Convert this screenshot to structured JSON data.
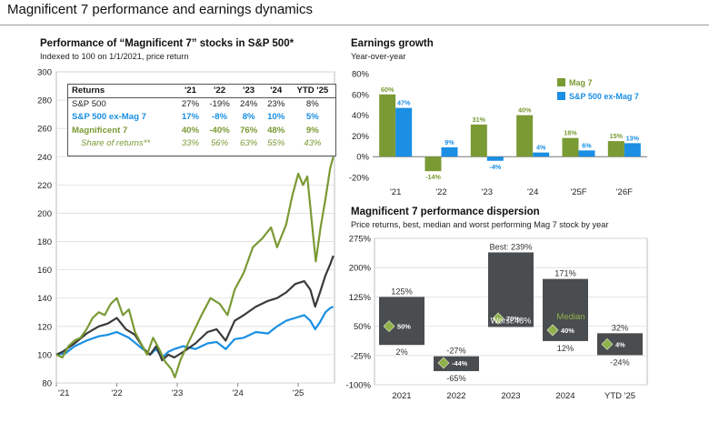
{
  "page": {
    "title": "Magnificent 7 performance and earnings dynamics"
  },
  "colors": {
    "mag7": "#7a9a34",
    "sp500": "#3a3a3a",
    "ex_mag7": "#1a8fe3",
    "box": "#4a4d4f",
    "diamond": "#8fb14a",
    "grid": "#dddddd"
  },
  "performance": {
    "title": "Performance of “Magnificent 7” stocks in S&P 500*",
    "subtitle": "Indexed to 100 on 1/1/2021, price return",
    "table": {
      "headers": [
        "Returns",
        "'21",
        "'22",
        "'23",
        "'24",
        "YTD '25"
      ],
      "rows": [
        {
          "label": "S&P 500",
          "values": [
            "27%",
            "-19%",
            "24%",
            "23%",
            "8%"
          ],
          "color": "#222222",
          "style": "normal"
        },
        {
          "label": "S&P 500 ex-Mag 7",
          "values": [
            "17%",
            "-8%",
            "8%",
            "10%",
            "5%"
          ],
          "color": "#1a8fe3",
          "style": "bold"
        },
        {
          "label": "Magnificent 7",
          "values": [
            "40%",
            "-40%",
            "76%",
            "48%",
            "9%"
          ],
          "color": "#7a9a34",
          "style": "bold"
        },
        {
          "label": "Share of returns**",
          "values": [
            "33%",
            "56%",
            "63%",
            "55%",
            "43%"
          ],
          "color": "#7a9a34",
          "style": "italic"
        }
      ]
    },
    "chart_data": {
      "type": "line",
      "x_ticks": [
        "'21",
        "'22",
        "'23",
        "'24",
        "'25"
      ],
      "ylim": [
        80,
        300
      ],
      "y_ticks": [
        80,
        100,
        120,
        140,
        160,
        180,
        200,
        220,
        240,
        260,
        280,
        300
      ],
      "series": [
        {
          "key": "mag7",
          "color": "#7a9a34",
          "points": [
            [
              2021.0,
              100
            ],
            [
              2021.1,
              98
            ],
            [
              2021.2,
              106
            ],
            [
              2021.3,
              110
            ],
            [
              2021.4,
              112
            ],
            [
              2021.5,
              118
            ],
            [
              2021.6,
              126
            ],
            [
              2021.7,
              130
            ],
            [
              2021.8,
              128
            ],
            [
              2021.9,
              136
            ],
            [
              2022.0,
              140
            ],
            [
              2022.1,
              128
            ],
            [
              2022.2,
              132
            ],
            [
              2022.3,
              116
            ],
            [
              2022.4,
              108
            ],
            [
              2022.5,
              100
            ],
            [
              2022.6,
              112
            ],
            [
              2022.7,
              104
            ],
            [
              2022.8,
              95
            ],
            [
              2022.9,
              90
            ],
            [
              2022.96,
              84
            ],
            [
              2023.05,
              96
            ],
            [
              2023.2,
              110
            ],
            [
              2023.4,
              128
            ],
            [
              2023.55,
              140
            ],
            [
              2023.7,
              136
            ],
            [
              2023.83,
              128
            ],
            [
              2023.95,
              146
            ],
            [
              2024.1,
              158
            ],
            [
              2024.25,
              176
            ],
            [
              2024.4,
              182
            ],
            [
              2024.55,
              190
            ],
            [
              2024.65,
              176
            ],
            [
              2024.8,
              192
            ],
            [
              2024.9,
              212
            ],
            [
              2025.0,
              228
            ],
            [
              2025.08,
              220
            ],
            [
              2025.15,
              226
            ],
            [
              2025.22,
              196
            ],
            [
              2025.29,
              166
            ],
            [
              2025.37,
              190
            ],
            [
              2025.45,
              210
            ],
            [
              2025.53,
              232
            ],
            [
              2025.58,
              240
            ]
          ]
        },
        {
          "key": "sp500",
          "color": "#3a3a3a",
          "points": [
            [
              2021.0,
              100
            ],
            [
              2021.1,
              102
            ],
            [
              2021.3,
              108
            ],
            [
              2021.5,
              115
            ],
            [
              2021.7,
              120
            ],
            [
              2021.85,
              122
            ],
            [
              2022.0,
              126
            ],
            [
              2022.15,
              118
            ],
            [
              2022.3,
              114
            ],
            [
              2022.45,
              104
            ],
            [
              2022.55,
              100
            ],
            [
              2022.65,
              106
            ],
            [
              2022.75,
              96
            ],
            [
              2022.85,
              100
            ],
            [
              2022.95,
              98
            ],
            [
              2023.1,
              102
            ],
            [
              2023.3,
              108
            ],
            [
              2023.5,
              116
            ],
            [
              2023.65,
              118
            ],
            [
              2023.8,
              110
            ],
            [
              2023.95,
              124
            ],
            [
              2024.1,
              128
            ],
            [
              2024.3,
              134
            ],
            [
              2024.5,
              138
            ],
            [
              2024.65,
              140
            ],
            [
              2024.8,
              144
            ],
            [
              2024.95,
              150
            ],
            [
              2025.1,
              152
            ],
            [
              2025.2,
              146
            ],
            [
              2025.28,
              134
            ],
            [
              2025.36,
              144
            ],
            [
              2025.45,
              156
            ],
            [
              2025.53,
              164
            ],
            [
              2025.58,
              170
            ]
          ]
        },
        {
          "key": "ex_mag7",
          "color": "#1a8fe3",
          "points": [
            [
              2021.0,
              100
            ],
            [
              2021.15,
              101
            ],
            [
              2021.3,
              106
            ],
            [
              2021.5,
              110
            ],
            [
              2021.7,
              113
            ],
            [
              2021.85,
              114
            ],
            [
              2022.0,
              116
            ],
            [
              2022.2,
              112
            ],
            [
              2022.4,
              105
            ],
            [
              2022.55,
              100
            ],
            [
              2022.65,
              104
            ],
            [
              2022.75,
              98
            ],
            [
              2022.85,
              102
            ],
            [
              2022.95,
              104
            ],
            [
              2023.1,
              106
            ],
            [
              2023.3,
              104
            ],
            [
              2023.5,
              108
            ],
            [
              2023.65,
              109
            ],
            [
              2023.8,
              104
            ],
            [
              2023.95,
              111
            ],
            [
              2024.1,
              112
            ],
            [
              2024.3,
              116
            ],
            [
              2024.5,
              115
            ],
            [
              2024.65,
              120
            ],
            [
              2024.8,
              124
            ],
            [
              2024.95,
              126
            ],
            [
              2025.1,
              128
            ],
            [
              2025.2,
              124
            ],
            [
              2025.28,
              118
            ],
            [
              2025.36,
              123
            ],
            [
              2025.45,
              130
            ],
            [
              2025.53,
              133
            ],
            [
              2025.58,
              134
            ]
          ]
        }
      ]
    }
  },
  "earnings": {
    "title": "Earnings growth",
    "subtitle": "Year-over-year",
    "chart_data": {
      "type": "bar",
      "categories": [
        "'21",
        "'22",
        "'23",
        "'24",
        "'25F",
        "'26F"
      ],
      "ylim": [
        -20,
        80
      ],
      "y_ticks": [
        "80%",
        "60%",
        "40%",
        "20%",
        "0%",
        "-20%"
      ],
      "y_tick_values": [
        80,
        60,
        40,
        20,
        0,
        -20
      ],
      "series": [
        {
          "name": "Mag 7",
          "color": "#7a9a34",
          "values": [
            60,
            -14,
            31,
            40,
            18,
            15
          ],
          "labels": [
            "60%",
            "-14%",
            "31%",
            "40%",
            "18%",
            "15%"
          ]
        },
        {
          "name": "S&P 500 ex-Mag 7",
          "color": "#1a8fe3",
          "values": [
            47,
            9,
            -4,
            4,
            6,
            13
          ],
          "labels": [
            "47%",
            "9%",
            "-4%",
            "4%",
            "6%",
            "13%"
          ]
        }
      ]
    }
  },
  "dispersion": {
    "title": "Magnificent 7 performance dispersion",
    "subtitle": "Price returns, best, median and worst performing Mag 7 stock by year",
    "chart_data": {
      "type": "box",
      "categories": [
        "2021",
        "2022",
        "2023",
        "2024",
        "YTD '25"
      ],
      "ylim": [
        -100,
        275
      ],
      "y_ticks": [
        "275%",
        "200%",
        "125%",
        "50%",
        "-25%",
        "-100%"
      ],
      "y_tick_values": [
        275,
        200,
        125,
        50,
        -25,
        -100
      ],
      "best": [
        125,
        -27,
        239,
        171,
        32
      ],
      "median": [
        50,
        -44,
        70,
        40,
        4
      ],
      "worst": [
        2,
        -65,
        48,
        12,
        -24
      ],
      "best_labels": [
        "125%",
        "-27%",
        "Best: 239%",
        "171%",
        "32%"
      ],
      "median_labels": [
        "50%",
        "-44%",
        "70%",
        "40%",
        "4%"
      ],
      "worst_labels": [
        "2%",
        "-65%",
        "Worst:48%",
        "12%",
        "-24%"
      ],
      "median_note": "Median"
    }
  }
}
